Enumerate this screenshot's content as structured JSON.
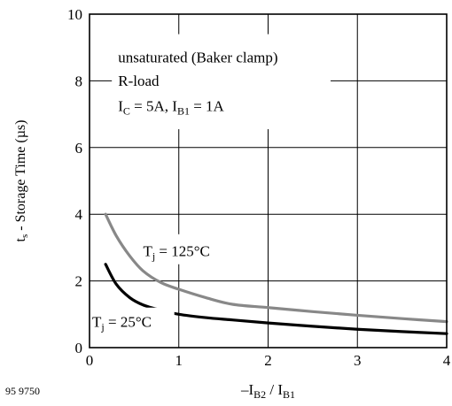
{
  "chart_data": {
    "type": "line",
    "xlabel": {
      "main": "–I",
      "sub1": "B2",
      "mid": " / I",
      "sub2": "B1"
    },
    "ylabel": {
      "t": "t",
      "s": "s",
      "rest": " - Storage Time (µs)"
    },
    "xlim": [
      0,
      4
    ],
    "ylim": [
      0,
      10
    ],
    "xticks": [
      "0",
      "1",
      "2",
      "3",
      "4"
    ],
    "yticks": [
      "0",
      "2",
      "4",
      "6",
      "8",
      "10"
    ],
    "grid": true,
    "annotation": {
      "line1": "unsaturated (Baker clamp)",
      "line2": "R-load",
      "line3": {
        "ic": "I",
        "ic_sub": "C",
        "mid": " = 5A, I",
        "ib_sub": "B1",
        "end": " = 1A"
      }
    },
    "series": [
      {
        "name": "Tj = 125°C",
        "label": {
          "t": "T",
          "sub": "j",
          "rest": " = 125°C"
        },
        "color": "#888888",
        "x": [
          0.18,
          0.3,
          0.45,
          0.6,
          0.8,
          1.0,
          1.3,
          1.6,
          2.0,
          2.5,
          3.0,
          3.5,
          4.0
        ],
        "y": [
          4.0,
          3.35,
          2.75,
          2.3,
          1.95,
          1.75,
          1.5,
          1.3,
          1.2,
          1.08,
          0.97,
          0.87,
          0.78
        ]
      },
      {
        "name": "Tj = 25°C",
        "label": {
          "t": "T",
          "sub": "j",
          "rest": " = 25°C"
        },
        "color": "#000000",
        "x": [
          0.18,
          0.3,
          0.45,
          0.6,
          0.8,
          1.0,
          1.3,
          1.6,
          2.0,
          2.5,
          3.0,
          3.5,
          4.0
        ],
        "y": [
          2.5,
          1.9,
          1.5,
          1.28,
          1.12,
          1.0,
          0.9,
          0.83,
          0.74,
          0.64,
          0.55,
          0.48,
          0.42
        ]
      }
    ]
  },
  "figure_code": "95 9750"
}
